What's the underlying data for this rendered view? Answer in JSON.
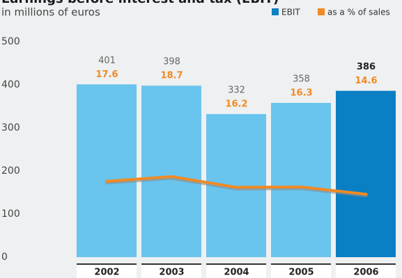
{
  "chart_data": {
    "type": "bar_line",
    "title": "Earnings before interest and tax (EBIT)",
    "subtitle": "in millions of euros",
    "categories": [
      "2002",
      "2003",
      "2004",
      "2005",
      "2006"
    ],
    "series": [
      {
        "name": "EBIT",
        "type": "bar",
        "color": "#0a7fc4",
        "colors": [
          "#69c4ee",
          "#69c4ee",
          "#69c4ee",
          "#69c4ee",
          "#0a7fc4"
        ],
        "values": [
          401,
          398,
          332,
          358,
          386
        ]
      },
      {
        "name": "as a % of sales",
        "type": "line",
        "axis": "y2",
        "color": "#f08a24",
        "values": [
          17.6,
          18.7,
          16.2,
          16.3,
          14.6
        ]
      }
    ],
    "ylim": [
      0,
      500
    ],
    "yticks": [
      0,
      100,
      200,
      300,
      400,
      500
    ],
    "y2lim": [
      0,
      50
    ],
    "legend": "top-right"
  }
}
